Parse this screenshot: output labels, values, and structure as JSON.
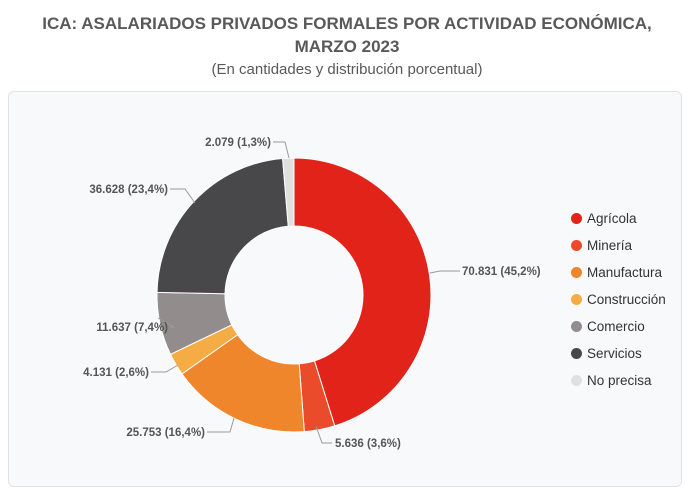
{
  "header": {
    "title_line1": "ICA: ASALARIADOS PRIVADOS FORMALES POR ACTIVIDAD ECONÓMICA,",
    "title_line2": "MARZO 2023",
    "subtitle": "(En cantidades y distribución porcentual)"
  },
  "chart_data": {
    "type": "pie",
    "variant": "donut",
    "title": "ICA: ASALARIADOS PRIVADOS FORMALES POR ACTIVIDAD ECONÓMICA, MARZO 2023",
    "subtitle": "(En cantidades y distribución porcentual)",
    "legend_position": "right",
    "slices": [
      {
        "name": "Agrícola",
        "value": 70831,
        "percent": 45.2,
        "label": "70.831 (45,2%)",
        "color": "#e2231a"
      },
      {
        "name": "Minería",
        "value": 5636,
        "percent": 3.6,
        "label": "5.636 (3,6%)",
        "color": "#ea4b2b"
      },
      {
        "name": "Manufactura",
        "value": 25753,
        "percent": 16.4,
        "label": "25.753 (16,4%)",
        "color": "#f0862b"
      },
      {
        "name": "Construcción",
        "value": 4131,
        "percent": 2.6,
        "label": "4.131 (2,6%)",
        "color": "#f6ac45"
      },
      {
        "name": "Comercio",
        "value": 11637,
        "percent": 7.4,
        "label": "11.637 (7,4%)",
        "color": "#938c8c"
      },
      {
        "name": "Servicios",
        "value": 36628,
        "percent": 23.4,
        "label": "36.628 (23,4%)",
        "color": "#48484a"
      },
      {
        "name": "No precisa",
        "value": 2079,
        "percent": 1.3,
        "label": "2.079 (1,3%)",
        "color": "#e0e0e0"
      }
    ]
  }
}
